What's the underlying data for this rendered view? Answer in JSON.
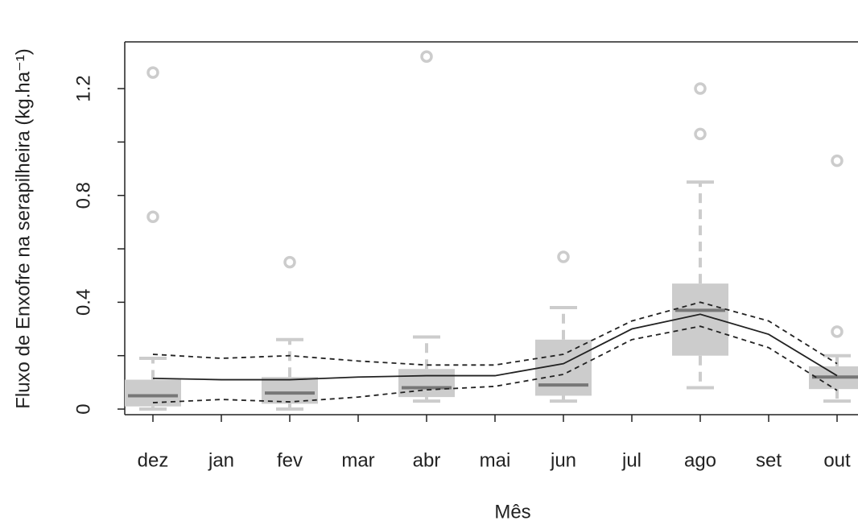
{
  "chart_data": {
    "type": "box",
    "x_label": "Mês",
    "y_label": "Fluxo de Enxofre na serapilheira (kg.ha⁻¹)",
    "categories": [
      "dez",
      "jan",
      "fev",
      "mar",
      "abr",
      "mai",
      "jun",
      "jul",
      "ago",
      "set",
      "out"
    ],
    "whisker_low": [
      0.0,
      null,
      0.0,
      null,
      0.03,
      null,
      0.03,
      null,
      0.08,
      null,
      0.03
    ],
    "q1": [
      0.01,
      null,
      0.02,
      null,
      0.045,
      null,
      0.05,
      null,
      0.2,
      null,
      0.075
    ],
    "median": [
      0.05,
      null,
      0.06,
      null,
      0.08,
      null,
      0.09,
      null,
      0.37,
      null,
      0.12
    ],
    "q3": [
      0.11,
      null,
      0.12,
      null,
      0.15,
      null,
      0.26,
      null,
      0.47,
      null,
      0.16
    ],
    "whisker_high": [
      0.19,
      null,
      0.26,
      null,
      0.27,
      null,
      0.38,
      null,
      0.85,
      null,
      0.2
    ],
    "outliers": [
      [
        0.72,
        1.26
      ],
      [],
      [
        0.55
      ],
      [],
      [
        1.32
      ],
      [],
      [
        0.57
      ],
      [],
      [
        1.03,
        1.2
      ],
      [],
      [
        0.29,
        0.93
      ]
    ],
    "box_color": "#cccccc",
    "median_color": "#777777",
    "fit": {
      "values": [
        0.115,
        0.11,
        0.11,
        0.12,
        0.125,
        0.125,
        0.17,
        0.3,
        0.355,
        0.28,
        0.125
      ],
      "color": "#222222"
    },
    "ci_upper": {
      "values": [
        0.205,
        0.19,
        0.2,
        0.18,
        0.165,
        0.165,
        0.205,
        0.33,
        0.4,
        0.33,
        0.17
      ],
      "color": "#222222"
    },
    "ci_lower": {
      "values": [
        0.024,
        0.036,
        0.027,
        0.045,
        0.072,
        0.085,
        0.13,
        0.26,
        0.31,
        0.23,
        0.07
      ],
      "color": "#222222"
    },
    "ylim": [
      -0.021,
      1.375
    ],
    "yticks": [
      0.0,
      0.4,
      0.8,
      1.2
    ],
    "yminorticks": [
      0.2,
      0.6,
      1.0
    ]
  }
}
